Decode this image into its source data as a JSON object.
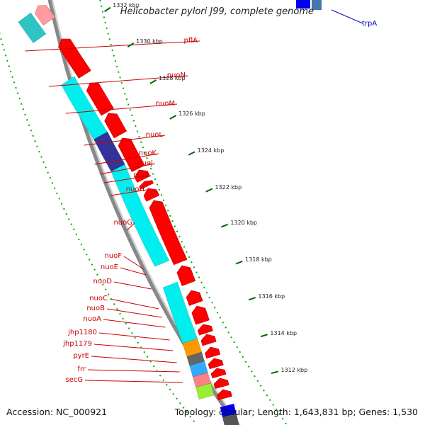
{
  "title": "Helicobacter pylori J99, complete genome",
  "accession_text": "Accession: NC_000921",
  "summary_text": "Topology: circular; Length: 1,643,831 bp; Genes: 1,530",
  "colors": {
    "gene_red": "#ff0000",
    "gene_cyan": "#00eeee",
    "gene_dark_blue": "#333399",
    "gene_blue": "#0000ee",
    "gene_orange": "#ff9900",
    "gene_grey": "#666666",
    "gene_sky": "#33aaff",
    "gene_pink": "#ff8080",
    "gene_lime": "#99ee33",
    "backbone": "#888888",
    "tick_green": "#006600",
    "label_red": "#cc0000",
    "label_blue": "#0000cc"
  },
  "scale_ticks": [
    {
      "label": "1332 kbp"
    },
    {
      "label": "1330 kbp"
    },
    {
      "label": "1328 kbp"
    },
    {
      "label": "1326 kbp"
    },
    {
      "label": "1324 kbp"
    },
    {
      "label": "1322 kbp"
    },
    {
      "label": "1320 kbp"
    },
    {
      "label": "1318 kbp"
    },
    {
      "label": "1316 kbp"
    },
    {
      "label": "1314 kbp"
    },
    {
      "label": "1312 kbp"
    }
  ],
  "gene_labels_left": [
    {
      "name": "pflA"
    },
    {
      "name": "nuoN"
    },
    {
      "name": "nuoM"
    },
    {
      "name": "nuoL"
    },
    {
      "name": "nuoK"
    },
    {
      "name": "nuoJ"
    },
    {
      "name": "nuoI"
    },
    {
      "name": "nuoH"
    },
    {
      "name": "nuoG"
    },
    {
      "name": "nuoF"
    },
    {
      "name": "nuoE"
    },
    {
      "name": "nuoD"
    },
    {
      "name": "nuoC"
    },
    {
      "name": "nuoB"
    },
    {
      "name": "nuoA"
    },
    {
      "name": "jhp1180"
    },
    {
      "name": "jhp1179"
    },
    {
      "name": "pyrE"
    },
    {
      "name": "frr"
    },
    {
      "name": "secG"
    }
  ],
  "gene_label_right": {
    "name": "trpA"
  }
}
